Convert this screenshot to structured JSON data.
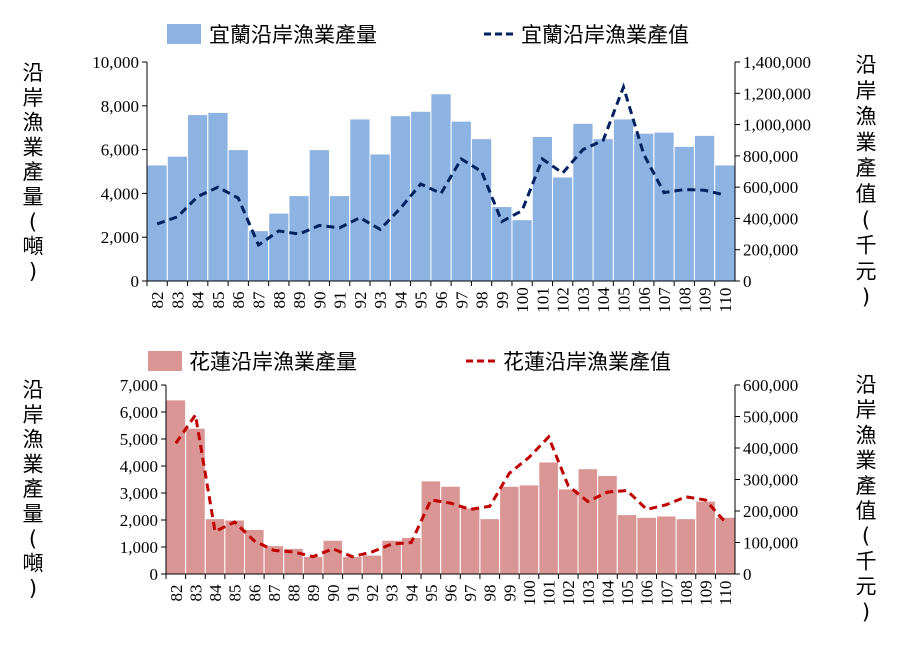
{
  "chart_data": [
    {
      "type": "bar+line",
      "categories": [
        "82",
        "83",
        "84",
        "85",
        "86",
        "87",
        "88",
        "89",
        "90",
        "91",
        "92",
        "93",
        "94",
        "95",
        "96",
        "97",
        "98",
        "99",
        "100",
        "101",
        "102",
        "103",
        "104",
        "105",
        "106",
        "107",
        "108",
        "109",
        "110"
      ],
      "series": [
        {
          "name": "宜蘭沿岸漁業產量",
          "kind": "bar",
          "axis": "left",
          "color": "#8DB3E2",
          "values": [
            5300,
            5700,
            7600,
            7700,
            6000,
            2300,
            3100,
            3900,
            6000,
            3900,
            7400,
            5800,
            7550,
            7750,
            8550,
            7300,
            6500,
            3400,
            2800,
            6600,
            4750,
            7200,
            6500,
            7400,
            6750,
            6800,
            6150,
            6650,
            5300
          ]
        },
        {
          "name": "宜蘭沿岸漁業產值",
          "kind": "line",
          "axis": "right",
          "color": "#002060",
          "dash": "dashed",
          "values": [
            365000,
            410000,
            540000,
            600000,
            530000,
            230000,
            320000,
            300000,
            355000,
            340000,
            405000,
            330000,
            465000,
            620000,
            560000,
            780000,
            700000,
            380000,
            450000,
            780000,
            690000,
            840000,
            900000,
            1240000,
            810000,
            565000,
            585000,
            580000,
            550000
          ]
        }
      ],
      "left_axis": {
        "title": "沿岸漁業產量(噸)",
        "ylim": [
          0,
          10000
        ],
        "ticks": [
          "0",
          "2,000",
          "4,000",
          "6,000",
          "8,000",
          "10,000"
        ]
      },
      "right_axis": {
        "title": "沿岸漁業產值(千元)",
        "ylim": [
          0,
          1400000
        ],
        "ticks": [
          "0",
          "200,000",
          "400,000",
          "600,000",
          "800,000",
          "1,000,000",
          "1,200,000",
          "1,400,000"
        ]
      },
      "legend": "top",
      "grid": false
    },
    {
      "type": "bar+line",
      "categories": [
        "82",
        "83",
        "84",
        "85",
        "86",
        "87",
        "88",
        "89",
        "90",
        "91",
        "92",
        "93",
        "94",
        "95",
        "96",
        "97",
        "98",
        "99",
        "100",
        "101",
        "102",
        "103",
        "104",
        "105",
        "106",
        "107",
        "108",
        "109",
        "110"
      ],
      "series": [
        {
          "name": "花蓮沿岸漁業產量",
          "kind": "bar",
          "axis": "left",
          "color": "#D99694",
          "values": [
            6450,
            5400,
            2050,
            2000,
            1650,
            1050,
            950,
            650,
            1250,
            650,
            700,
            1250,
            1350,
            3450,
            3250,
            2450,
            2050,
            3250,
            3300,
            4150,
            3150,
            3900,
            3650,
            2200,
            2100,
            2150,
            2050,
            2700,
            2100
          ]
        },
        {
          "name": "花蓮沿岸漁業產值",
          "kind": "line",
          "axis": "right",
          "color": "#C00000",
          "dash": "dashed",
          "values": [
            415000,
            505000,
            135000,
            165000,
            105000,
            75000,
            70000,
            55000,
            80000,
            55000,
            70000,
            95000,
            100000,
            235000,
            225000,
            205000,
            215000,
            320000,
            370000,
            435000,
            280000,
            230000,
            260000,
            265000,
            205000,
            220000,
            245000,
            235000,
            165000
          ]
        }
      ],
      "left_axis": {
        "title": "沿岸漁業產量(噸)",
        "ylim": [
          0,
          7000
        ],
        "ticks": [
          "0",
          "1,000",
          "2,000",
          "3,000",
          "4,000",
          "5,000",
          "6,000",
          "7,000"
        ]
      },
      "right_axis": {
        "title": "沿岸漁業產值(千元)",
        "ylim": [
          0,
          600000
        ],
        "ticks": [
          "0",
          "100,000",
          "200,000",
          "300,000",
          "400,000",
          "500,000",
          "600,000"
        ]
      },
      "legend": "top",
      "grid": false
    }
  ]
}
